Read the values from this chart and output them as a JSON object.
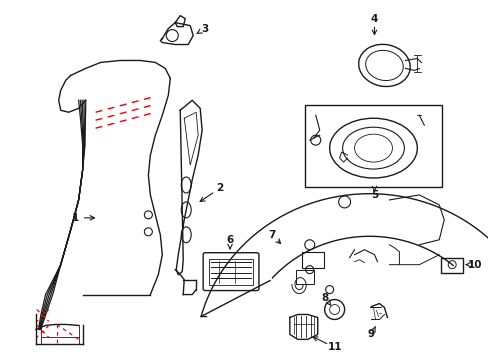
{
  "bg_color": "#ffffff",
  "line_color": "#1a1a1a",
  "red_color": "#ee0000",
  "figsize": [
    4.89,
    3.6
  ],
  "dpi": 100
}
